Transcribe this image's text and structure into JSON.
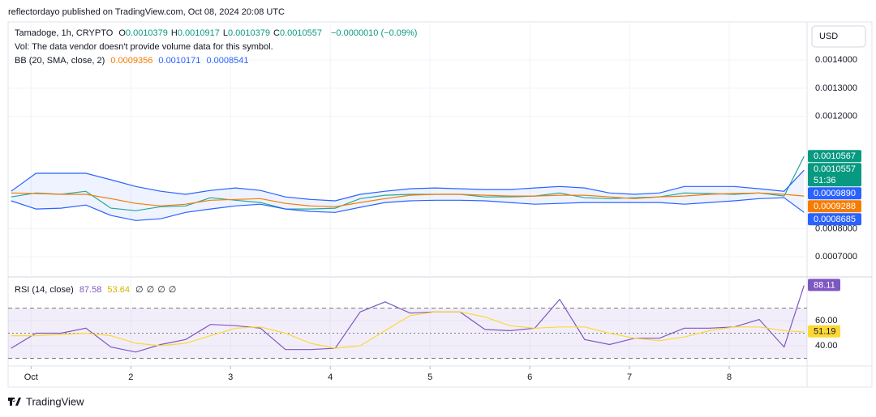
{
  "header": {
    "publisher": "reflectordayo published on TradingView.com, Oct 08, 2024 20:08 UTC",
    "currency": "USD"
  },
  "footer": {
    "brand": "TradingView"
  },
  "legend": {
    "symbol": "Tamadoge, 1h, CRYPTO",
    "ohlc": [
      {
        "key": "O",
        "text": "0.0010379"
      },
      {
        "key": "H",
        "text": "0.0010917"
      },
      {
        "key": "L",
        "text": "0.0010379"
      },
      {
        "key": "C",
        "text": "0.0010557"
      }
    ],
    "change": "−0.0000010 (−0.09%)",
    "volume_note": "Vol: The data vendor doesn't provide volume data for this symbol.",
    "bb_title": "BB (20, SMA, close, 2)",
    "bb_values": [
      "0.0009356",
      "0.0010171",
      "0.0008541"
    ],
    "rsi_title": "RSI (14, close)",
    "rsi_values": [
      "87.58",
      "53.64"
    ],
    "rsi_empty": [
      "∅",
      "∅",
      "∅",
      "∅"
    ]
  },
  "chart_data": [
    {
      "type": "line",
      "x": [
        0.8,
        1.05,
        1.3,
        1.55,
        1.8,
        2.05,
        2.3,
        2.55,
        2.8,
        3.05,
        3.3,
        3.55,
        3.8,
        4.05,
        4.3,
        4.55,
        4.8,
        5.05,
        5.3,
        5.55,
        5.8,
        6.05,
        6.3,
        6.55,
        6.8,
        7.05,
        7.3,
        7.55,
        7.8,
        8.05,
        8.3,
        8.55,
        8.75
      ],
      "series": [
        {
          "color": "#26a69a",
          "values": [
            0.000913,
            0.000927,
            0.000922,
            0.000933,
            0.000873,
            0.000864,
            0.000878,
            0.000881,
            0.00091,
            0.000901,
            0.000893,
            0.00087,
            0.00087,
            0.000873,
            0.000907,
            0.000919,
            0.000922,
            0.000922,
            0.000922,
            0.000913,
            0.000913,
            0.000916,
            0.000927,
            0.00091,
            0.000907,
            0.00091,
            0.000913,
            0.000927,
            0.000925,
            0.000922,
            0.000927,
            0.000916,
            0.001057
          ]
        },
        {
          "color": "#2962ff",
          "values": [
            0.000933,
            0.000997,
            0.000997,
            0.000997,
            0.000974,
            0.00095,
            0.000933,
            0.000922,
            0.000936,
            0.000945,
            0.000936,
            0.000913,
            0.000904,
            0.000899,
            0.000922,
            0.000933,
            0.000942,
            0.000945,
            0.000942,
            0.000939,
            0.000939,
            0.000945,
            0.00095,
            0.000945,
            0.000927,
            0.000922,
            0.000927,
            0.00095,
            0.00095,
            0.00095,
            0.000942,
            0.000933,
            0.001008
          ]
        },
        {
          "color": "#f57c00",
          "values": [
            0.000927,
            0.000925,
            0.000922,
            0.000922,
            0.000907,
            0.00089,
            0.000881,
            0.000887,
            0.000901,
            0.000904,
            0.000907,
            0.00089,
            0.000881,
            0.000878,
            0.000893,
            0.000907,
            0.000919,
            0.000922,
            0.000922,
            0.000919,
            0.000916,
            0.000916,
            0.000919,
            0.000919,
            0.000913,
            0.000907,
            0.000913,
            0.000916,
            0.000922,
            0.000925,
            0.000927,
            0.000922,
            0.000916
          ]
        },
        {
          "color": "#2962ff",
          "values": [
            0.000899,
            0.00087,
            0.000873,
            0.000884,
            0.000847,
            0.000829,
            0.000835,
            0.000858,
            0.00087,
            0.000881,
            0.000887,
            0.00087,
            0.000861,
            0.000858,
            0.000876,
            0.000893,
            0.000899,
            0.000901,
            0.000901,
            0.000899,
            0.000893,
            0.000887,
            0.00089,
            0.000893,
            0.000893,
            0.000893,
            0.000893,
            0.000887,
            0.000893,
            0.000899,
            0.000907,
            0.00091,
            0.000858
          ]
        }
      ],
      "band_fill": "#2962ff",
      "xlim": [
        0.77,
        8.78
      ],
      "ylim": [
        0.000634,
        0.001533
      ],
      "yticks": [
        {
          "value": 0.0007,
          "label": "0.0007000"
        },
        {
          "value": 0.0008,
          "label": "0.0008000"
        },
        {
          "value": 0.0012,
          "label": "0.0012000"
        },
        {
          "value": 0.0013,
          "label": "0.0013000"
        },
        {
          "value": 0.0014,
          "label": "0.0014000"
        }
      ],
      "grid": true,
      "axis_tags": [
        {
          "value": 0.0010567,
          "label": "0.0010567",
          "color": "#089981"
        },
        {
          "value": 0.0010557,
          "label": "0.0010557",
          "sublabel": "51:36",
          "color": "#089981"
        },
        {
          "value": 0.000989,
          "label": "0.0009890",
          "color": "#2962ff"
        },
        {
          "value": 0.0009288,
          "label": "0.0009288",
          "color": "#f57c00"
        },
        {
          "value": 0.0008685,
          "label": "0.0008685",
          "color": "#2962ff"
        }
      ]
    },
    {
      "type": "line",
      "x": [
        0.8,
        1.05,
        1.3,
        1.55,
        1.8,
        2.05,
        2.3,
        2.55,
        2.8,
        3.05,
        3.3,
        3.55,
        3.8,
        4.05,
        4.3,
        4.55,
        4.8,
        5.05,
        5.3,
        5.55,
        5.8,
        6.05,
        6.3,
        6.55,
        6.8,
        7.05,
        7.3,
        7.55,
        7.8,
        8.05,
        8.3,
        8.55,
        8.75
      ],
      "series": [
        {
          "color": "#7e57c2",
          "values": [
            38,
            50,
            50,
            54,
            39,
            35,
            41,
            45,
            57,
            56,
            54,
            37,
            37,
            38,
            67,
            75,
            66,
            67,
            67,
            53,
            52,
            54,
            77,
            45,
            41,
            46,
            46,
            54,
            54,
            55,
            61,
            39,
            88
          ]
        },
        {
          "color": "#fdd835",
          "values": [
            48,
            48,
            49,
            50,
            48,
            42,
            40,
            42,
            48,
            54,
            55,
            50,
            42,
            38,
            40,
            52,
            64,
            67,
            67,
            63,
            56,
            54,
            55,
            55,
            50,
            46,
            44,
            47,
            52,
            55,
            55,
            52,
            51
          ]
        }
      ],
      "levels": [
        30,
        50,
        70
      ],
      "band_fill": "#7e57c2",
      "xlim": [
        0.77,
        8.78
      ],
      "ylim": [
        25.2,
        92.9
      ],
      "yticks": [
        {
          "value": 40,
          "label": "40.00"
        },
        {
          "value": 60,
          "label": "60.00"
        }
      ],
      "xticks": [
        {
          "value": 1,
          "label": "Oct"
        },
        2,
        3,
        4,
        5,
        6,
        7,
        8
      ],
      "grid": true,
      "axis_tags": [
        {
          "value": 88.11,
          "label": "88.11",
          "color": "#7e57c2"
        },
        {
          "value": 51.19,
          "label": "51.19",
          "color": "#fdd835"
        }
      ]
    }
  ]
}
